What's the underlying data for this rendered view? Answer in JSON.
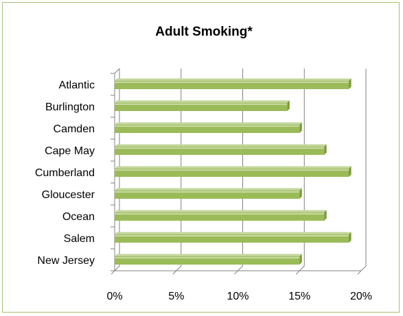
{
  "chart_data": {
    "type": "bar",
    "orientation": "horizontal",
    "title": "Adult Smoking*",
    "categories": [
      "Atlantic",
      "Burlington",
      "Camden",
      "Cape May",
      "Cumberland",
      "Gloucester",
      "Ocean",
      "Salem",
      "New Jersey"
    ],
    "values": [
      0.19,
      0.14,
      0.15,
      0.17,
      0.19,
      0.15,
      0.17,
      0.19,
      0.15
    ],
    "xlabel": "",
    "ylabel": "",
    "xlim": [
      0,
      0.2
    ],
    "x_ticks": [
      "0%",
      "5%",
      "10%",
      "15%",
      "20%"
    ],
    "grid": true,
    "bar_color": "#9bbb59",
    "bar_top_color": "#c3d69b",
    "bar_end_color": "#7a9a3c",
    "frame_color": "#a7be73"
  }
}
